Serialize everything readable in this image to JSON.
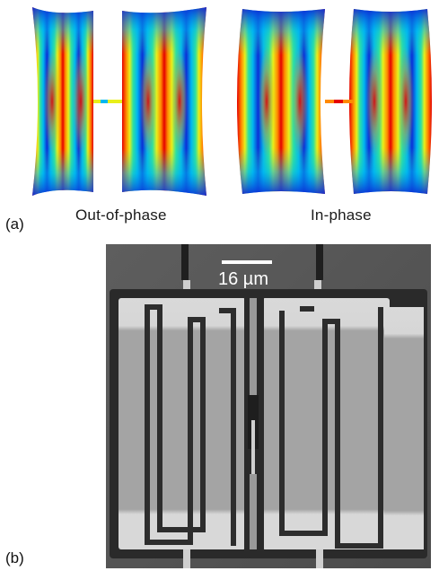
{
  "panel_a": {
    "label": "(a)",
    "modes": [
      {
        "caption": "Out-of-phase"
      },
      {
        "caption": "In-phase"
      }
    ],
    "colormap": [
      "#0b2fd6",
      "#00b7f0",
      "#2fe0a0",
      "#e8ef1a",
      "#ff8a00",
      "#e50000"
    ]
  },
  "panel_b": {
    "label": "(b)",
    "scale_bar": {
      "text": "16 µm"
    }
  }
}
